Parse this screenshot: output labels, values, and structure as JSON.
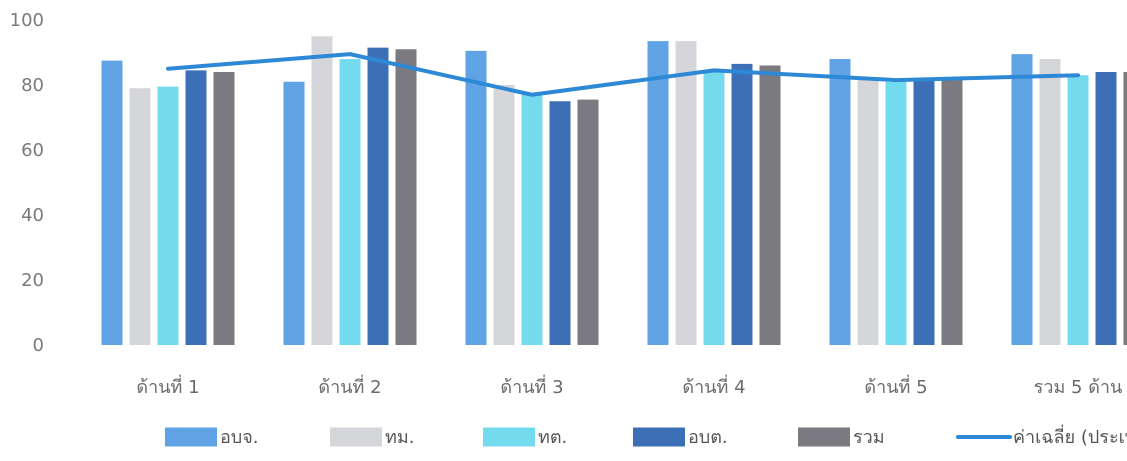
{
  "chart_data": {
    "type": "bar",
    "categories": [
      "ด้านที่ 1",
      "ด้านที่ 2",
      "ด้านที่ 3",
      "ด้านที่ 4",
      "ด้านที่ 5",
      "รวม 5 ด้าน"
    ],
    "ylim": [
      0,
      100
    ],
    "yticks": [
      0,
      20,
      40,
      60,
      80,
      100
    ],
    "grid": false,
    "legend_position": "bottom",
    "series": [
      {
        "name": "อบจ.",
        "color": "#5fa3e4",
        "values": [
          87.5,
          81,
          90.5,
          93.5,
          88,
          89.5
        ]
      },
      {
        "name": "ทม.",
        "color": "#d5d6da",
        "values": [
          79,
          95,
          80,
          93.5,
          82,
          88
        ]
      },
      {
        "name": "ทต.",
        "color": "#74dbee",
        "values": [
          79.5,
          88,
          77,
          84,
          81,
          83
        ]
      },
      {
        "name": "อบต.",
        "color": "#3c6fb6",
        "values": [
          84.5,
          91.5,
          75,
          86.5,
          82,
          84
        ]
      },
      {
        "name": "รวม",
        "color": "#7a7a80",
        "values": [
          84,
          91,
          75.5,
          86,
          82,
          84
        ]
      }
    ],
    "line_series": {
      "name": "ค่าเฉลี่ย (ประเทศ)",
      "color": "#2d88d6",
      "values": [
        85,
        89.5,
        77,
        84.5,
        81.5,
        83
      ]
    }
  }
}
